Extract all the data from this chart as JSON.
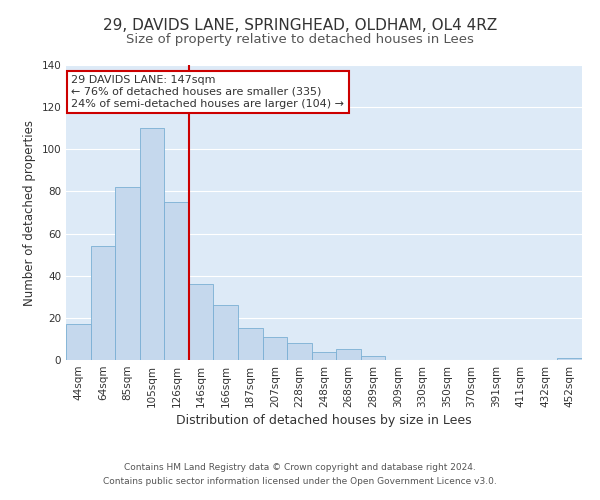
{
  "title1": "29, DAVIDS LANE, SPRINGHEAD, OLDHAM, OL4 4RZ",
  "title2": "Size of property relative to detached houses in Lees",
  "xlabel": "Distribution of detached houses by size in Lees",
  "ylabel": "Number of detached properties",
  "bar_labels": [
    "44sqm",
    "64sqm",
    "85sqm",
    "105sqm",
    "126sqm",
    "146sqm",
    "166sqm",
    "187sqm",
    "207sqm",
    "228sqm",
    "248sqm",
    "268sqm",
    "289sqm",
    "309sqm",
    "330sqm",
    "350sqm",
    "370sqm",
    "391sqm",
    "411sqm",
    "432sqm",
    "452sqm"
  ],
  "bar_values": [
    17,
    54,
    82,
    110,
    75,
    36,
    26,
    15,
    11,
    8,
    4,
    5,
    2,
    0,
    0,
    0,
    0,
    0,
    0,
    0,
    1
  ],
  "bar_color": "#c5d8ed",
  "bar_edge_color": "#7aafd4",
  "vline_color": "#cc0000",
  "annotation_title": "29 DAVIDS LANE: 147sqm",
  "annotation_line1": "← 76% of detached houses are smaller (335)",
  "annotation_line2": "24% of semi-detached houses are larger (104) →",
  "annotation_box_color": "#ffffff",
  "annotation_box_edge": "#cc0000",
  "ylim": [
    0,
    140
  ],
  "yticks": [
    0,
    20,
    40,
    60,
    80,
    100,
    120,
    140
  ],
  "footer1": "Contains HM Land Registry data © Crown copyright and database right 2024.",
  "footer2": "Contains public sector information licensed under the Open Government Licence v3.0.",
  "plot_bg_color": "#ddeaf7",
  "fig_bg_color": "#ffffff",
  "grid_color": "#ffffff",
  "title1_fontsize": 11,
  "title2_fontsize": 9.5,
  "xlabel_fontsize": 9,
  "ylabel_fontsize": 8.5,
  "tick_fontsize": 7.5,
  "footer_fontsize": 6.5
}
